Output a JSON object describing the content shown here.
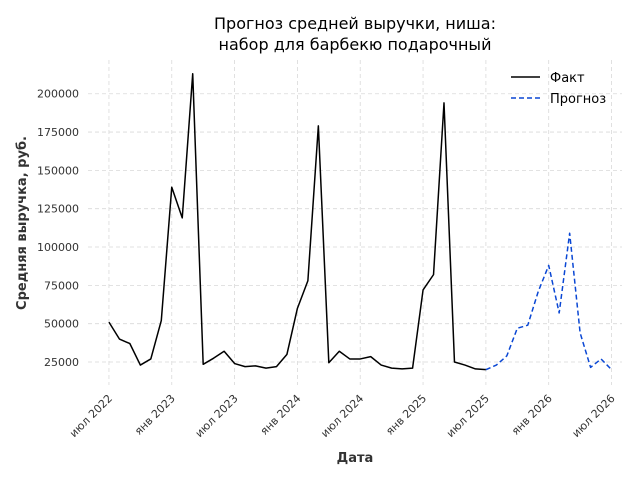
{
  "chart_data": {
    "type": "line",
    "title_lines": [
      "Прогноз средней выручки, ниша:",
      "набор для барбекю подарочный"
    ],
    "xlabel": "Дата",
    "ylabel": "Средняя выручка, руб.",
    "x_ticks": [
      {
        "date": "2022-07",
        "label": "июл 2022"
      },
      {
        "date": "2023-01",
        "label": "янв 2023"
      },
      {
        "date": "2023-07",
        "label": "июл 2023"
      },
      {
        "date": "2024-01",
        "label": "янв 2024"
      },
      {
        "date": "2024-07",
        "label": "июл 2024"
      },
      {
        "date": "2025-01",
        "label": "янв 2025"
      },
      {
        "date": "2025-07",
        "label": "июл 2025"
      },
      {
        "date": "2026-01",
        "label": "янв 2026"
      },
      {
        "date": "2026-07",
        "label": "июл 2026"
      }
    ],
    "y_ticks": [
      25000,
      50000,
      75000,
      100000,
      125000,
      150000,
      175000,
      200000
    ],
    "ylim": [
      10000,
      222000
    ],
    "xlim": [
      "2022-05",
      "2026-08"
    ],
    "grid": true,
    "legend_position": "top-right",
    "series": [
      {
        "name": "Факт",
        "color": "#000000",
        "dash": "solid",
        "points": [
          [
            "2022-07",
            51000
          ],
          [
            "2022-08",
            40000
          ],
          [
            "2022-09",
            37000
          ],
          [
            "2022-10",
            23000
          ],
          [
            "2022-11",
            27000
          ],
          [
            "2022-12",
            52000
          ],
          [
            "2023-01",
            139000
          ],
          [
            "2023-02",
            119000
          ],
          [
            "2023-03",
            213000
          ],
          [
            "2023-04",
            23500
          ],
          [
            "2023-05",
            27500
          ],
          [
            "2023-06",
            32000
          ],
          [
            "2023-07",
            24000
          ],
          [
            "2023-08",
            22000
          ],
          [
            "2023-09",
            22500
          ],
          [
            "2023-10",
            21000
          ],
          [
            "2023-11",
            22000
          ],
          [
            "2023-12",
            30000
          ],
          [
            "2024-01",
            60000
          ],
          [
            "2024-02",
            78000
          ],
          [
            "2024-03",
            179000
          ],
          [
            "2024-04",
            24500
          ],
          [
            "2024-05",
            32000
          ],
          [
            "2024-06",
            27000
          ],
          [
            "2024-07",
            27000
          ],
          [
            "2024-08",
            28500
          ],
          [
            "2024-09",
            23000
          ],
          [
            "2024-10",
            21000
          ],
          [
            "2024-11",
            20500
          ],
          [
            "2024-12",
            21000
          ],
          [
            "2025-01",
            72000
          ],
          [
            "2025-02",
            82000
          ],
          [
            "2025-03",
            194000
          ],
          [
            "2025-04",
            25000
          ],
          [
            "2025-05",
            23000
          ],
          [
            "2025-06",
            20500
          ],
          [
            "2025-07",
            20000
          ]
        ]
      },
      {
        "name": "Прогноз",
        "color": "#0a47d4",
        "dash": "dashed",
        "points": [
          [
            "2025-07",
            20000
          ],
          [
            "2025-08",
            23000
          ],
          [
            "2025-09",
            29000
          ],
          [
            "2025-10",
            47000
          ],
          [
            "2025-11",
            49000
          ],
          [
            "2025-12",
            71000
          ],
          [
            "2026-01",
            88000
          ],
          [
            "2026-02",
            57000
          ],
          [
            "2026-03",
            109000
          ],
          [
            "2026-04",
            44000
          ],
          [
            "2026-05",
            21500
          ],
          [
            "2026-06",
            27000
          ],
          [
            "2026-07",
            20000
          ]
        ]
      }
    ]
  }
}
